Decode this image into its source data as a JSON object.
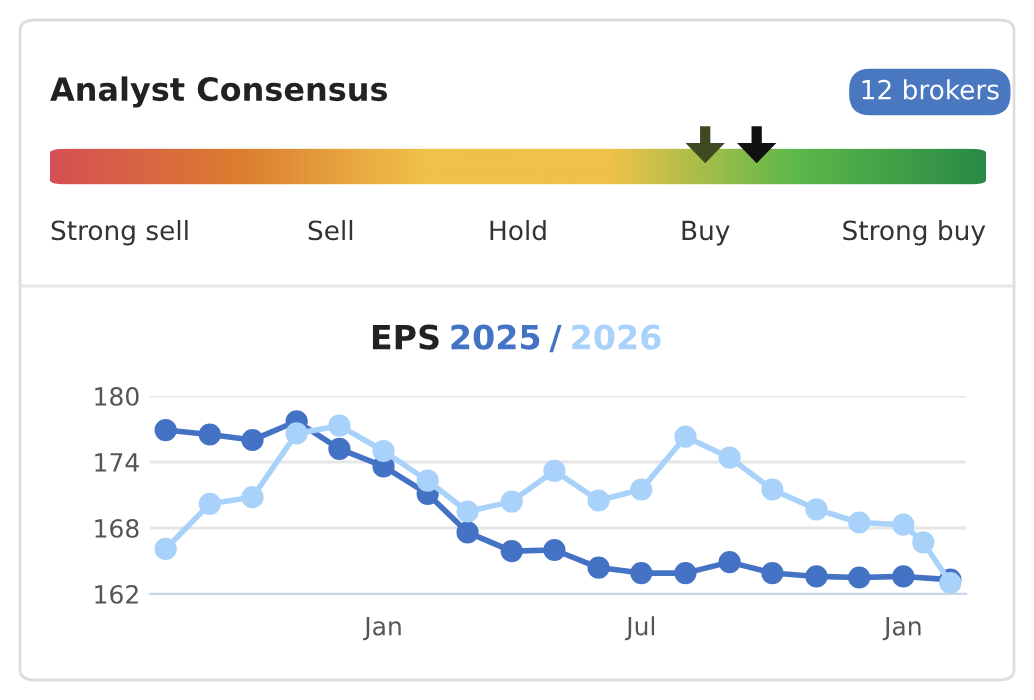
{
  "chart_data": [
    {
      "type": "other",
      "title": "Analyst Consensus",
      "categories": [
        "Strong sell",
        "Sell",
        "Hold",
        "Buy",
        "Strong buy"
      ],
      "annotations": [
        "12 brokers"
      ]
    },
    {
      "type": "line",
      "title": "EPS",
      "annotations": [
        "/"
      ],
      "legend": "top",
      "marker": "circle",
      "grid": "y",
      "xlim": [
        "2024-07-21",
        "2026-02-14"
      ],
      "ylim": [
        162,
        180
      ],
      "xticks": [
        {
          "value": "2025-01-01",
          "label": "Jan"
        },
        {
          "value": "2025-07-01",
          "label": "Jul"
        },
        {
          "value": "2026-01-01",
          "label": "Jan"
        }
      ],
      "yticks": [
        162,
        168,
        174,
        180
      ],
      "series": [
        {
          "name": "2025",
          "color": "#4472c4",
          "x": [
            "2024-08-01",
            "2024-09-01",
            "2024-10-01",
            "2024-11-01",
            "2024-12-01",
            "2025-01-01",
            "2025-02-01",
            "2025-03-01",
            "2025-04-01",
            "2025-05-01",
            "2025-06-01",
            "2025-07-01",
            "2025-08-01",
            "2025-09-01",
            "2025-10-01",
            "2025-11-01",
            "2025-12-01",
            "2026-01-01",
            "2026-02-03"
          ],
          "values": [
            176.9,
            176.5,
            176.0,
            177.7,
            175.2,
            173.6,
            171.1,
            167.6,
            165.9,
            166.0,
            164.4,
            163.9,
            163.9,
            164.9,
            163.9,
            163.6,
            163.5,
            163.6,
            163.3
          ]
        },
        {
          "name": "2026",
          "color": "#a9d2fb",
          "x": [
            "2024-08-01",
            "2024-09-01",
            "2024-10-01",
            "2024-11-01",
            "2024-12-01",
            "2025-01-01",
            "2025-02-01",
            "2025-03-01",
            "2025-04-01",
            "2025-05-01",
            "2025-06-01",
            "2025-07-01",
            "2025-08-01",
            "2025-09-01",
            "2025-10-01",
            "2025-11-01",
            "2025-12-01",
            "2026-01-01",
            "2026-01-15",
            "2026-02-03"
          ],
          "values": [
            166.1,
            170.2,
            170.8,
            176.6,
            177.3,
            175.0,
            172.3,
            169.5,
            170.4,
            173.2,
            170.5,
            171.5,
            176.3,
            174.4,
            171.5,
            169.7,
            168.5,
            168.3,
            166.7,
            163.0
          ]
        }
      ]
    }
  ]
}
